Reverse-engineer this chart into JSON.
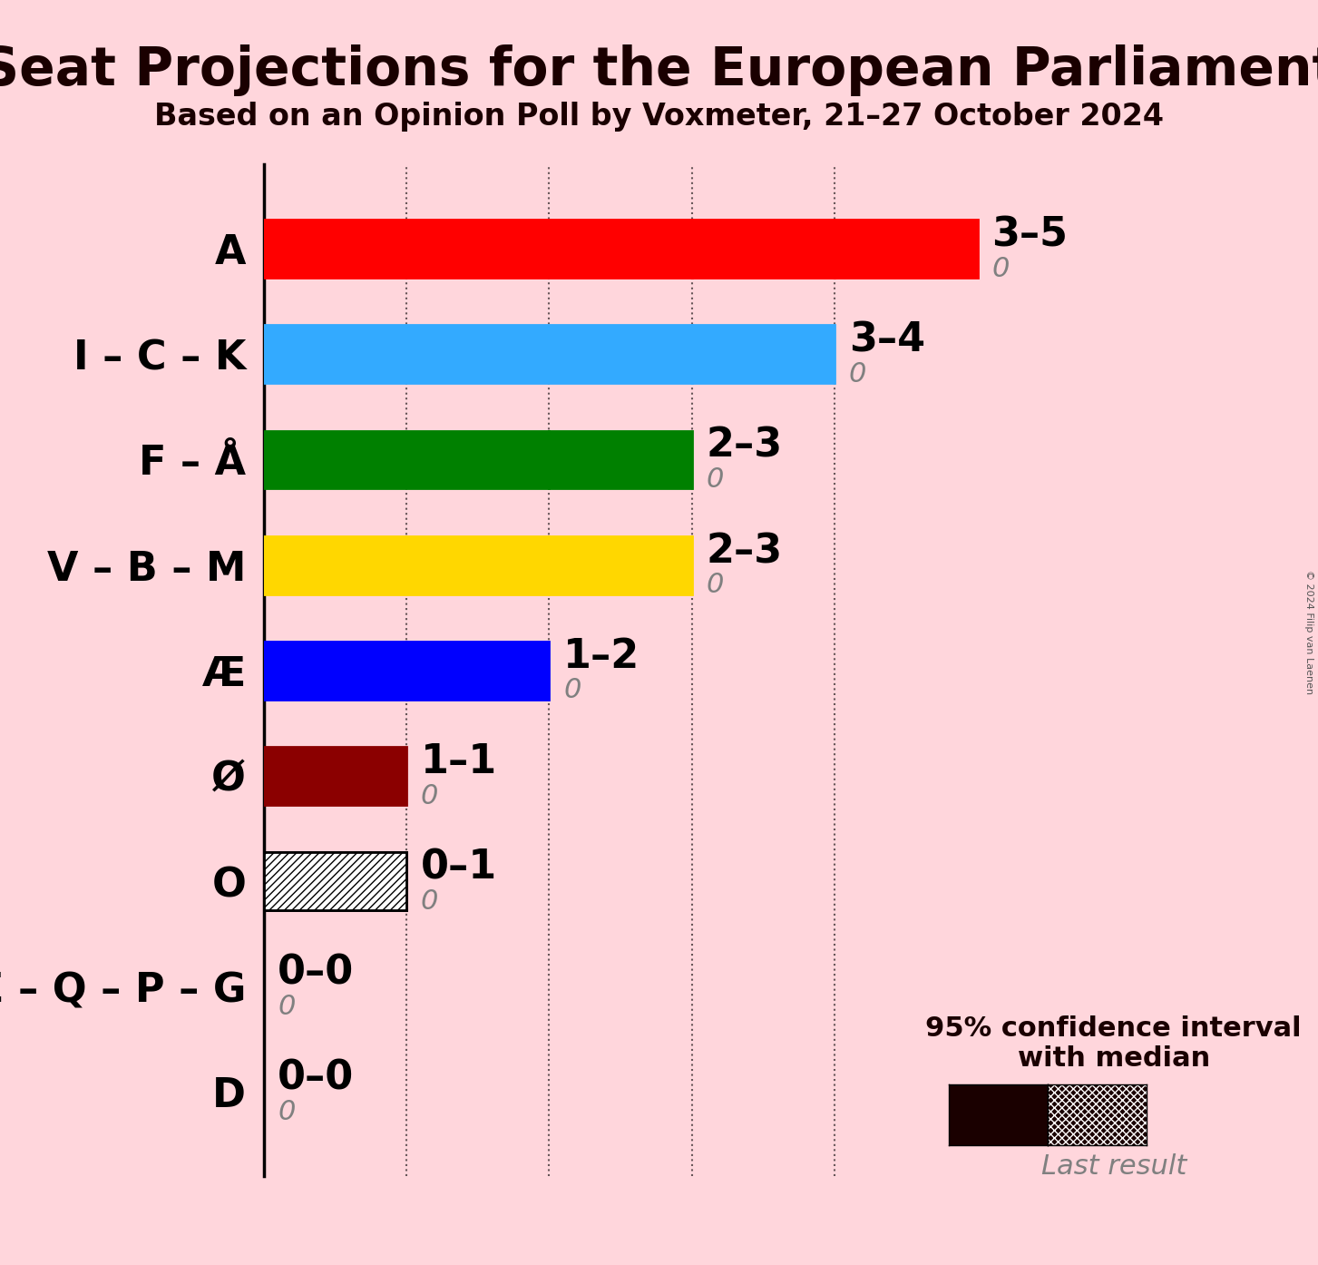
{
  "title": "Seat Projections for the European Parliament",
  "subtitle": "Based on an Opinion Poll by Voxmeter, 21–27 October 2024",
  "copyright": "© 2024 Filip van Laenen",
  "background_color": "#FFD6DC",
  "parties": [
    "A",
    "I – C – K",
    "F – Å",
    "V – B – M",
    "Æ",
    "Ø",
    "O",
    "E – Q – P – G",
    "D"
  ],
  "labels": [
    "3–5",
    "3–4",
    "2–3",
    "2–3",
    "1–2",
    "1–1",
    "0–1",
    "0–0",
    "0–0"
  ],
  "last_results": [
    0,
    0,
    0,
    0,
    0,
    0,
    0,
    0,
    0
  ],
  "solid_end": [
    3,
    3,
    2,
    2,
    1,
    1,
    0,
    0,
    0
  ],
  "cross_end": [
    4,
    3,
    3,
    3,
    1,
    1,
    0,
    0,
    0
  ],
  "diag_end": [
    5,
    4,
    3,
    3,
    2,
    1,
    1,
    0,
    0
  ],
  "colors": [
    "#FF0000",
    "#33AAFF",
    "#008000",
    "#FFD700",
    "#0000FF",
    "#8B0000",
    "#FFFFFF",
    "#FFD6DC",
    "#FFD6DC"
  ],
  "edge_colors": [
    "#FF0000",
    "#33AAFF",
    "#008000",
    "#FFD700",
    "#0000FF",
    "#8B0000",
    "#000000",
    "#FFD6DC",
    "#FFD6DC"
  ],
  "xlim_max": 6,
  "dotted_lines": [
    1,
    2,
    3,
    4
  ],
  "bar_height": 0.55,
  "label_fontsize": 32,
  "tick_fontsize": 0,
  "title_fontsize": 42,
  "subtitle_fontsize": 24,
  "range_label_fontsize": 32,
  "last_result_fontsize": 22,
  "legend_label_fontsize": 22
}
